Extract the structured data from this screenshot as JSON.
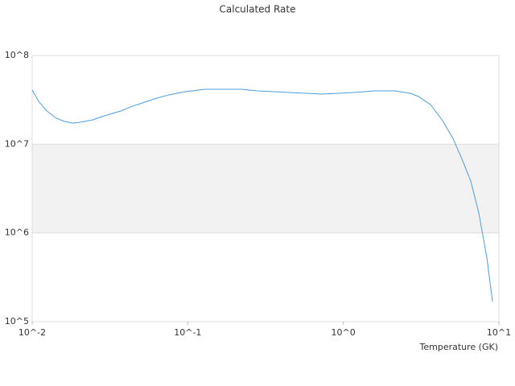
{
  "chart_data": {
    "type": "line",
    "title": "Calculated Rate",
    "x_label": "Temperature (GK)",
    "log_x": true,
    "log_y": true,
    "grid": true,
    "xlim": [
      0.01,
      10
    ],
    "ylim": [
      100000,
      100000000
    ],
    "xticks": [
      {
        "value": 0.01,
        "label": "10^-2"
      },
      {
        "value": 0.1,
        "label": "10^-1"
      },
      {
        "value": 1,
        "label": "10^0"
      },
      {
        "value": 10,
        "label": "10^1"
      }
    ],
    "yticks": [
      {
        "value": 100000,
        "label": "10^5"
      },
      {
        "value": 1000000,
        "label": "10^6"
      },
      {
        "value": 10000000,
        "label": "10^7"
      },
      {
        "value": 100000000,
        "label": "10^8"
      }
    ],
    "series": [
      {
        "color": "#4a9de0",
        "x": [
          0.01,
          0.011,
          0.0124,
          0.0143,
          0.0161,
          0.0181,
          0.0204,
          0.0244,
          0.0292,
          0.0371,
          0.0443,
          0.053,
          0.0634,
          0.0757,
          0.0961,
          0.129,
          0.174,
          0.221,
          0.281,
          0.356,
          0.452,
          0.574,
          0.728,
          0.925,
          1.17,
          1.58,
          2.13,
          2.7,
          3.04,
          3.63,
          4.34,
          5.07,
          5.85,
          6.59,
          7.43,
          8.36,
          9.1
        ],
        "values": [
          40700000,
          30400000,
          23700000,
          19600000,
          18100000,
          17300000,
          17700000,
          18800000,
          20900000,
          23700000,
          26900000,
          29800000,
          33100000,
          36000000,
          39100000,
          41600000,
          41600000,
          41600000,
          39900000,
          39100000,
          38300000,
          37500000,
          36700000,
          37500000,
          38300000,
          39900000,
          39900000,
          37500000,
          34500000,
          28000000,
          18500000,
          11600000,
          6500000,
          3850000,
          1670000,
          531000,
          168000
        ]
      }
    ]
  }
}
